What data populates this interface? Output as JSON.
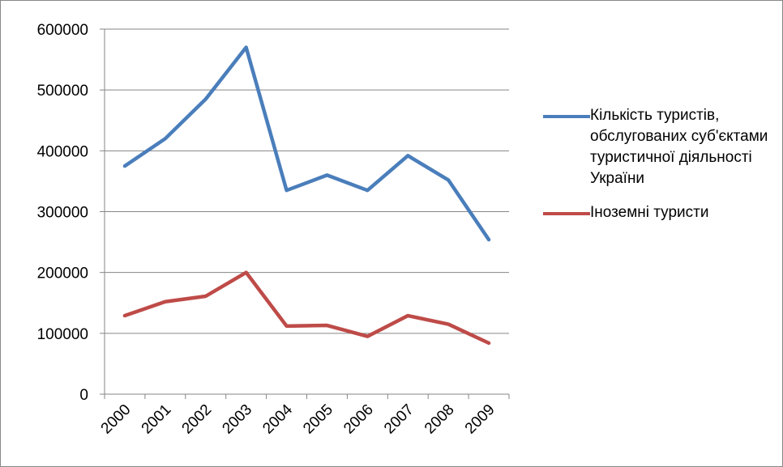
{
  "chart_data": {
    "type": "line",
    "categories": [
      "2000",
      "2001",
      "2002",
      "2003",
      "2004",
      "2005",
      "2006",
      "2007",
      "2008",
      "2009"
    ],
    "series": [
      {
        "name": "Кількість туристів, обслугованих суб'єктами туристичної діяльності України",
        "color": "#4a7ebb",
        "values": [
          375000,
          420000,
          485000,
          570000,
          335000,
          360000,
          335000,
          392000,
          352000,
          254000
        ]
      },
      {
        "name": "Іноземні туристи",
        "color": "#be4b48",
        "values": [
          129000,
          152000,
          161000,
          200000,
          112000,
          113000,
          95000,
          129000,
          115000,
          84000
        ]
      }
    ],
    "ylim": [
      0,
      600000
    ],
    "yticks": [
      0,
      100000,
      200000,
      300000,
      400000,
      500000,
      600000
    ],
    "grid": true,
    "legend": "right"
  }
}
